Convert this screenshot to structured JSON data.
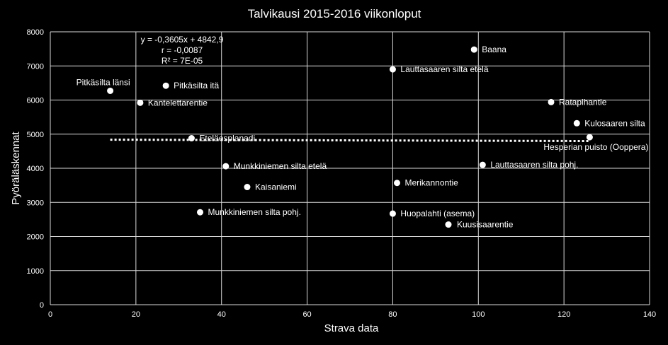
{
  "chart_data": {
    "type": "scatter",
    "title": "Talvikausi 2015-2016 viikonloput",
    "xlabel": "Strava data",
    "ylabel": "Pyöräläskennat",
    "xlim": [
      0,
      140
    ],
    "ylim": [
      0,
      8000
    ],
    "x_ticks": [
      0,
      20,
      40,
      60,
      80,
      100,
      120,
      140
    ],
    "y_ticks": [
      0,
      1000,
      2000,
      3000,
      4000,
      5000,
      6000,
      7000,
      8000
    ],
    "grid": true,
    "legend": "none",
    "points": [
      {
        "label": "Pitkäsilta länsi",
        "x": 14,
        "y": 6270
      },
      {
        "label": "Kantelettarentie",
        "x": 21,
        "y": 5920
      },
      {
        "label": "Pitkäsilta itä",
        "x": 27,
        "y": 6420
      },
      {
        "label": "Eteläesplanadi",
        "x": 33,
        "y": 4880
      },
      {
        "label": "Munkkiniemen silta pohj.",
        "x": 35,
        "y": 2710
      },
      {
        "label": "Munkkiniemen silta etelä",
        "x": 41,
        "y": 4060
      },
      {
        "label": "Kaisaniemi",
        "x": 46,
        "y": 3450
      },
      {
        "label": "Lauttasaaren silta etelä",
        "x": 80,
        "y": 6900
      },
      {
        "label": "Huopalahti (asema)",
        "x": 80,
        "y": 2670
      },
      {
        "label": "Merikannontie",
        "x": 81,
        "y": 3570
      },
      {
        "label": "Kuusisaarentie",
        "x": 93,
        "y": 2350
      },
      {
        "label": "Baana",
        "x": 99,
        "y": 7480
      },
      {
        "label": "Lauttasaaren silta pohj.",
        "x": 101,
        "y": 4100
      },
      {
        "label": "Ratapihantie",
        "x": 117,
        "y": 5940
      },
      {
        "label": "Kulosaaren silta",
        "x": 123,
        "y": 5320
      },
      {
        "label": "Hesperian puisto (Ooppera)",
        "x": 126,
        "y": 4910
      }
    ],
    "trendline": {
      "slope": -0.3605,
      "intercept": 4842.9,
      "x_range": [
        14,
        126
      ],
      "style": "dotted",
      "equation_lines": [
        "y = -0,3605x + 4842,9",
        "r = -0,0087",
        "R² = 7E-05"
      ]
    }
  }
}
